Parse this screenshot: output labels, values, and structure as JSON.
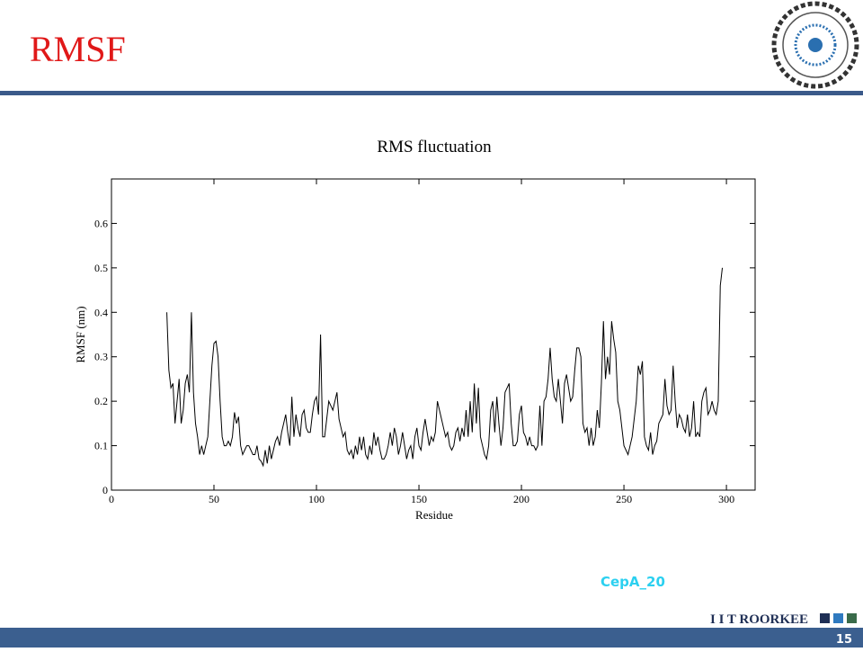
{
  "slide_title": "RMSF",
  "chart_data": {
    "type": "line",
    "title": "RMS fluctuation",
    "x_label": "Residue",
    "y_label": "RMSF (nm)",
    "xlim": [
      0,
      314
    ],
    "ylim": [
      0,
      0.7
    ],
    "xticks": [
      0,
      50,
      100,
      150,
      200,
      250,
      300
    ],
    "yticks": [
      0,
      0.1,
      0.2,
      0.3,
      0.4,
      0.5,
      0.6
    ],
    "color": "#000000",
    "x": [
      27,
      28,
      29,
      30,
      31,
      32,
      33,
      34,
      35,
      36,
      37,
      38,
      39,
      40,
      41,
      42,
      43,
      44,
      45,
      46,
      47,
      48,
      49,
      50,
      51,
      52,
      53,
      54,
      55,
      56,
      57,
      58,
      59,
      60,
      61,
      62,
      63,
      64,
      65,
      66,
      67,
      68,
      69,
      70,
      71,
      72,
      73,
      74,
      75,
      76,
      77,
      78,
      79,
      80,
      81,
      82,
      83,
      84,
      85,
      86,
      87,
      88,
      89,
      90,
      91,
      92,
      93,
      94,
      95,
      96,
      97,
      98,
      99,
      100,
      101,
      102,
      103,
      104,
      105,
      106,
      107,
      108,
      109,
      110,
      111,
      112,
      113,
      114,
      115,
      116,
      117,
      118,
      119,
      120,
      121,
      122,
      123,
      124,
      125,
      126,
      127,
      128,
      129,
      130,
      131,
      132,
      133,
      134,
      135,
      136,
      137,
      138,
      139,
      140,
      141,
      142,
      143,
      144,
      145,
      146,
      147,
      148,
      149,
      150,
      151,
      152,
      153,
      154,
      155,
      156,
      157,
      158,
      159,
      160,
      161,
      162,
      163,
      164,
      165,
      166,
      167,
      168,
      169,
      170,
      171,
      172,
      173,
      174,
      175,
      176,
      177,
      178,
      179,
      180,
      181,
      182,
      183,
      184,
      185,
      186,
      187,
      188,
      189,
      190,
      191,
      192,
      193,
      194,
      195,
      196,
      197,
      198,
      199,
      200,
      201,
      202,
      203,
      204,
      205,
      206,
      207,
      208,
      209,
      210,
      211,
      212,
      213,
      214,
      215,
      216,
      217,
      218,
      219,
      220,
      221,
      222,
      223,
      224,
      225,
      226,
      227,
      228,
      229,
      230,
      231,
      232,
      233,
      234,
      235,
      236,
      237,
      238,
      239,
      240,
      241,
      242,
      243,
      244,
      245,
      246,
      247,
      248,
      249,
      250,
      251,
      252,
      253,
      254,
      255,
      256,
      257,
      258,
      259,
      260,
      261,
      262,
      263,
      264,
      265,
      266,
      267,
      268,
      269,
      270,
      271,
      272,
      273,
      274,
      275,
      276,
      277,
      278,
      279,
      280,
      281,
      282,
      283,
      284,
      285,
      286,
      287,
      288,
      289,
      290,
      291,
      292,
      293,
      294,
      295,
      296,
      297,
      298
    ],
    "values": [
      0.4,
      0.27,
      0.23,
      0.24,
      0.15,
      0.2,
      0.25,
      0.15,
      0.18,
      0.24,
      0.26,
      0.22,
      0.4,
      0.22,
      0.15,
      0.12,
      0.08,
      0.1,
      0.08,
      0.1,
      0.12,
      0.2,
      0.28,
      0.33,
      0.335,
      0.3,
      0.2,
      0.12,
      0.1,
      0.1,
      0.11,
      0.1,
      0.12,
      0.175,
      0.15,
      0.165,
      0.1,
      0.08,
      0.09,
      0.1,
      0.1,
      0.09,
      0.08,
      0.08,
      0.1,
      0.07,
      0.065,
      0.055,
      0.09,
      0.06,
      0.1,
      0.07,
      0.09,
      0.11,
      0.12,
      0.1,
      0.13,
      0.15,
      0.17,
      0.13,
      0.1,
      0.21,
      0.12,
      0.17,
      0.14,
      0.12,
      0.17,
      0.18,
      0.14,
      0.13,
      0.13,
      0.17,
      0.2,
      0.21,
      0.17,
      0.35,
      0.12,
      0.12,
      0.16,
      0.2,
      0.19,
      0.18,
      0.2,
      0.22,
      0.16,
      0.14,
      0.12,
      0.13,
      0.09,
      0.08,
      0.09,
      0.07,
      0.1,
      0.08,
      0.12,
      0.09,
      0.12,
      0.08,
      0.07,
      0.1,
      0.08,
      0.13,
      0.1,
      0.12,
      0.09,
      0.07,
      0.07,
      0.08,
      0.1,
      0.13,
      0.1,
      0.14,
      0.12,
      0.08,
      0.1,
      0.13,
      0.1,
      0.07,
      0.09,
      0.1,
      0.07,
      0.12,
      0.14,
      0.1,
      0.09,
      0.13,
      0.16,
      0.13,
      0.1,
      0.12,
      0.11,
      0.13,
      0.2,
      0.18,
      0.16,
      0.14,
      0.12,
      0.13,
      0.1,
      0.09,
      0.1,
      0.13,
      0.14,
      0.11,
      0.14,
      0.12,
      0.18,
      0.12,
      0.2,
      0.13,
      0.24,
      0.15,
      0.23,
      0.12,
      0.1,
      0.08,
      0.07,
      0.1,
      0.18,
      0.2,
      0.13,
      0.21,
      0.15,
      0.1,
      0.14,
      0.22,
      0.23,
      0.24,
      0.15,
      0.1,
      0.1,
      0.11,
      0.17,
      0.19,
      0.13,
      0.12,
      0.1,
      0.12,
      0.1,
      0.1,
      0.09,
      0.1,
      0.19,
      0.1,
      0.2,
      0.21,
      0.25,
      0.32,
      0.25,
      0.21,
      0.2,
      0.25,
      0.2,
      0.15,
      0.24,
      0.26,
      0.23,
      0.2,
      0.21,
      0.27,
      0.32,
      0.32,
      0.3,
      0.15,
      0.13,
      0.14,
      0.1,
      0.14,
      0.1,
      0.12,
      0.18,
      0.14,
      0.24,
      0.38,
      0.25,
      0.3,
      0.26,
      0.38,
      0.34,
      0.31,
      0.2,
      0.18,
      0.14,
      0.1,
      0.09,
      0.08,
      0.1,
      0.12,
      0.16,
      0.2,
      0.28,
      0.26,
      0.29,
      0.12,
      0.1,
      0.09,
      0.13,
      0.08,
      0.1,
      0.11,
      0.15,
      0.16,
      0.17,
      0.25,
      0.19,
      0.17,
      0.18,
      0.28,
      0.2,
      0.14,
      0.17,
      0.16,
      0.14,
      0.13,
      0.17,
      0.12,
      0.14,
      0.2,
      0.12,
      0.13,
      0.12,
      0.2,
      0.22,
      0.23,
      0.17,
      0.18,
      0.2,
      0.18,
      0.17,
      0.2,
      0.46,
      0.5
    ]
  },
  "caption": "CepA_20",
  "footer_brand": "I I T ROORKEE",
  "page_number": "15"
}
